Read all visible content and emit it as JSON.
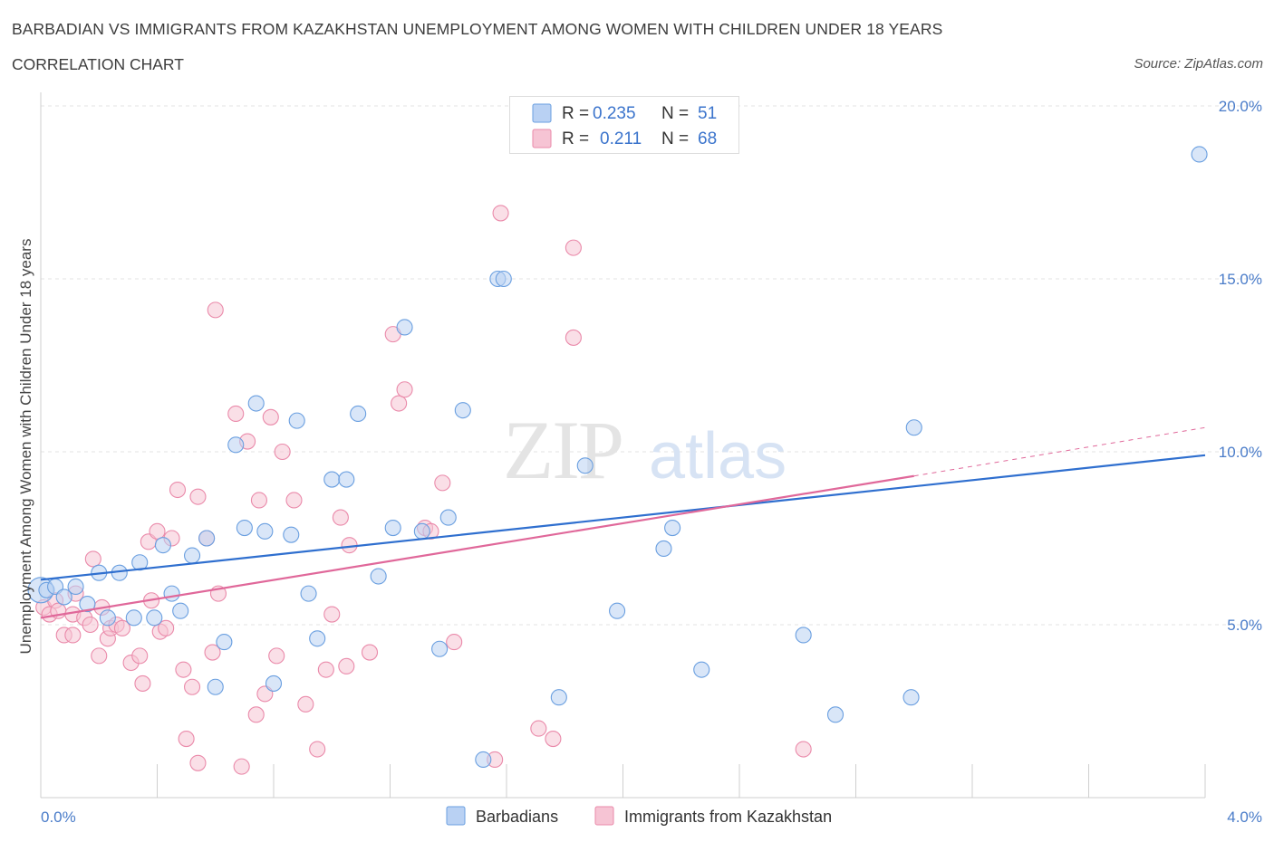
{
  "title": "BARBADIAN VS IMMIGRANTS FROM KAZAKHSTAN UNEMPLOYMENT AMONG WOMEN WITH CHILDREN UNDER 18 YEARS",
  "subtitle": "CORRELATION CHART",
  "source": "Source: ZipAtlas.com",
  "watermark": {
    "zip": "ZIP",
    "atlas": "atlas"
  },
  "colors": {
    "blue": "#6a9fe0",
    "blue_fill": "#b9d1f3",
    "blue_line": "#2f6fcf",
    "pink": "#ea8aaa",
    "pink_fill": "#f6c4d4",
    "pink_line": "#e0689a",
    "axis_text": "#4a7cc9",
    "grid": "#e3e3e3"
  },
  "legend": {
    "rows": [
      {
        "r_label": "R =",
        "r_value": "0.235",
        "n_label": "N =",
        "n_value": "51"
      },
      {
        "r_label": "R =",
        "r_value": "0.211",
        "n_label": "N =",
        "n_value": "68"
      }
    ]
  },
  "chart_data": {
    "type": "scatter",
    "title": "BARBADIAN VS IMMIGRANTS FROM KAZAKHSTAN UNEMPLOYMENT AMONG WOMEN WITH CHILDREN UNDER 18 YEARS",
    "xlabel": "",
    "ylabel": "Unemployment Among Women with Children Under 18 years",
    "xlim": [
      0.0,
      4.0
    ],
    "ylim": [
      0.0,
      20.0
    ],
    "x_tick_labels": [
      "0.0%",
      "4.0%"
    ],
    "y_tick_labels": [
      "5.0%",
      "10.0%",
      "15.0%",
      "20.0%"
    ],
    "y_ticks": [
      5,
      10,
      15,
      20
    ],
    "grid": true,
    "legend_position": "top-center",
    "series": [
      {
        "name": "Barbadians",
        "color": "#6a9fe0",
        "trend": {
          "x": [
            0.0,
            4.0
          ],
          "y": [
            6.3,
            9.9
          ]
        },
        "points": [
          [
            0.02,
            6.0
          ],
          [
            0.05,
            6.1
          ],
          [
            0.12,
            6.1
          ],
          [
            0.08,
            5.8
          ],
          [
            0.16,
            5.6
          ],
          [
            0.2,
            6.5
          ],
          [
            0.27,
            6.5
          ],
          [
            0.23,
            5.2
          ],
          [
            0.32,
            5.2
          ],
          [
            0.34,
            6.8
          ],
          [
            0.39,
            5.2
          ],
          [
            0.45,
            5.9
          ],
          [
            0.48,
            5.4
          ],
          [
            0.42,
            7.3
          ],
          [
            0.52,
            7.0
          ],
          [
            0.57,
            7.5
          ],
          [
            0.63,
            4.5
          ],
          [
            0.6,
            3.2
          ],
          [
            0.7,
            7.8
          ],
          [
            0.77,
            7.7
          ],
          [
            0.8,
            3.3
          ],
          [
            0.67,
            10.2
          ],
          [
            0.74,
            11.4
          ],
          [
            0.86,
            7.6
          ],
          [
            0.88,
            10.9
          ],
          [
            0.92,
            5.9
          ],
          [
            0.95,
            4.6
          ],
          [
            1.0,
            9.2
          ],
          [
            1.05,
            9.2
          ],
          [
            1.09,
            11.1
          ],
          [
            1.16,
            6.4
          ],
          [
            1.21,
            7.8
          ],
          [
            1.25,
            13.6
          ],
          [
            1.31,
            7.7
          ],
          [
            1.37,
            4.3
          ],
          [
            1.4,
            8.1
          ],
          [
            1.45,
            11.2
          ],
          [
            1.52,
            1.1
          ],
          [
            1.57,
            15.0
          ],
          [
            1.59,
            15.0
          ],
          [
            1.78,
            2.9
          ],
          [
            1.87,
            9.6
          ],
          [
            1.98,
            5.4
          ],
          [
            2.14,
            7.2
          ],
          [
            2.17,
            7.8
          ],
          [
            2.27,
            3.7
          ],
          [
            2.62,
            4.7
          ],
          [
            2.73,
            2.4
          ],
          [
            3.0,
            10.7
          ],
          [
            2.99,
            2.9
          ],
          [
            3.98,
            18.6
          ]
        ]
      },
      {
        "name": "Immigrants from Kazakhstan",
        "color": "#ea8aaa",
        "trend": {
          "x": [
            0.0,
            3.0
          ],
          "y": [
            5.2,
            9.3
          ]
        },
        "trend_extension": {
          "x": [
            3.0,
            4.0
          ],
          "y": [
            9.3,
            10.7
          ]
        },
        "points": [
          [
            0.01,
            5.5
          ],
          [
            0.03,
            5.3
          ],
          [
            0.05,
            5.7
          ],
          [
            0.06,
            5.4
          ],
          [
            0.08,
            4.7
          ],
          [
            0.11,
            5.3
          ],
          [
            0.11,
            4.7
          ],
          [
            0.12,
            5.9
          ],
          [
            0.15,
            5.2
          ],
          [
            0.17,
            5.0
          ],
          [
            0.18,
            6.9
          ],
          [
            0.2,
            4.1
          ],
          [
            0.21,
            5.5
          ],
          [
            0.23,
            4.6
          ],
          [
            0.24,
            4.9
          ],
          [
            0.26,
            5.0
          ],
          [
            0.28,
            4.9
          ],
          [
            0.31,
            3.9
          ],
          [
            0.34,
            4.1
          ],
          [
            0.35,
            3.3
          ],
          [
            0.37,
            7.4
          ],
          [
            0.38,
            5.7
          ],
          [
            0.4,
            7.7
          ],
          [
            0.41,
            4.8
          ],
          [
            0.43,
            4.9
          ],
          [
            0.45,
            7.5
          ],
          [
            0.47,
            8.9
          ],
          [
            0.49,
            3.7
          ],
          [
            0.5,
            1.7
          ],
          [
            0.52,
            3.2
          ],
          [
            0.54,
            1.0
          ],
          [
            0.54,
            8.7
          ],
          [
            0.57,
            7.5
          ],
          [
            0.59,
            4.2
          ],
          [
            0.6,
            14.1
          ],
          [
            0.61,
            5.9
          ],
          [
            0.67,
            11.1
          ],
          [
            0.69,
            0.9
          ],
          [
            0.71,
            10.3
          ],
          [
            0.74,
            2.4
          ],
          [
            0.75,
            8.6
          ],
          [
            0.77,
            3.0
          ],
          [
            0.79,
            11.0
          ],
          [
            0.81,
            4.1
          ],
          [
            0.83,
            10.0
          ],
          [
            0.87,
            8.6
          ],
          [
            0.91,
            2.7
          ],
          [
            0.95,
            1.4
          ],
          [
            0.98,
            3.7
          ],
          [
            1.0,
            5.3
          ],
          [
            1.03,
            8.1
          ],
          [
            1.05,
            3.8
          ],
          [
            1.06,
            7.3
          ],
          [
            1.13,
            4.2
          ],
          [
            1.21,
            13.4
          ],
          [
            1.23,
            11.4
          ],
          [
            1.25,
            11.8
          ],
          [
            1.32,
            7.8
          ],
          [
            1.34,
            7.7
          ],
          [
            1.38,
            9.1
          ],
          [
            1.42,
            4.5
          ],
          [
            1.56,
            1.1
          ],
          [
            1.58,
            16.9
          ],
          [
            1.71,
            2.0
          ],
          [
            1.76,
            1.7
          ],
          [
            1.83,
            13.3
          ],
          [
            1.83,
            15.9
          ],
          [
            2.62,
            1.4
          ]
        ]
      }
    ]
  }
}
